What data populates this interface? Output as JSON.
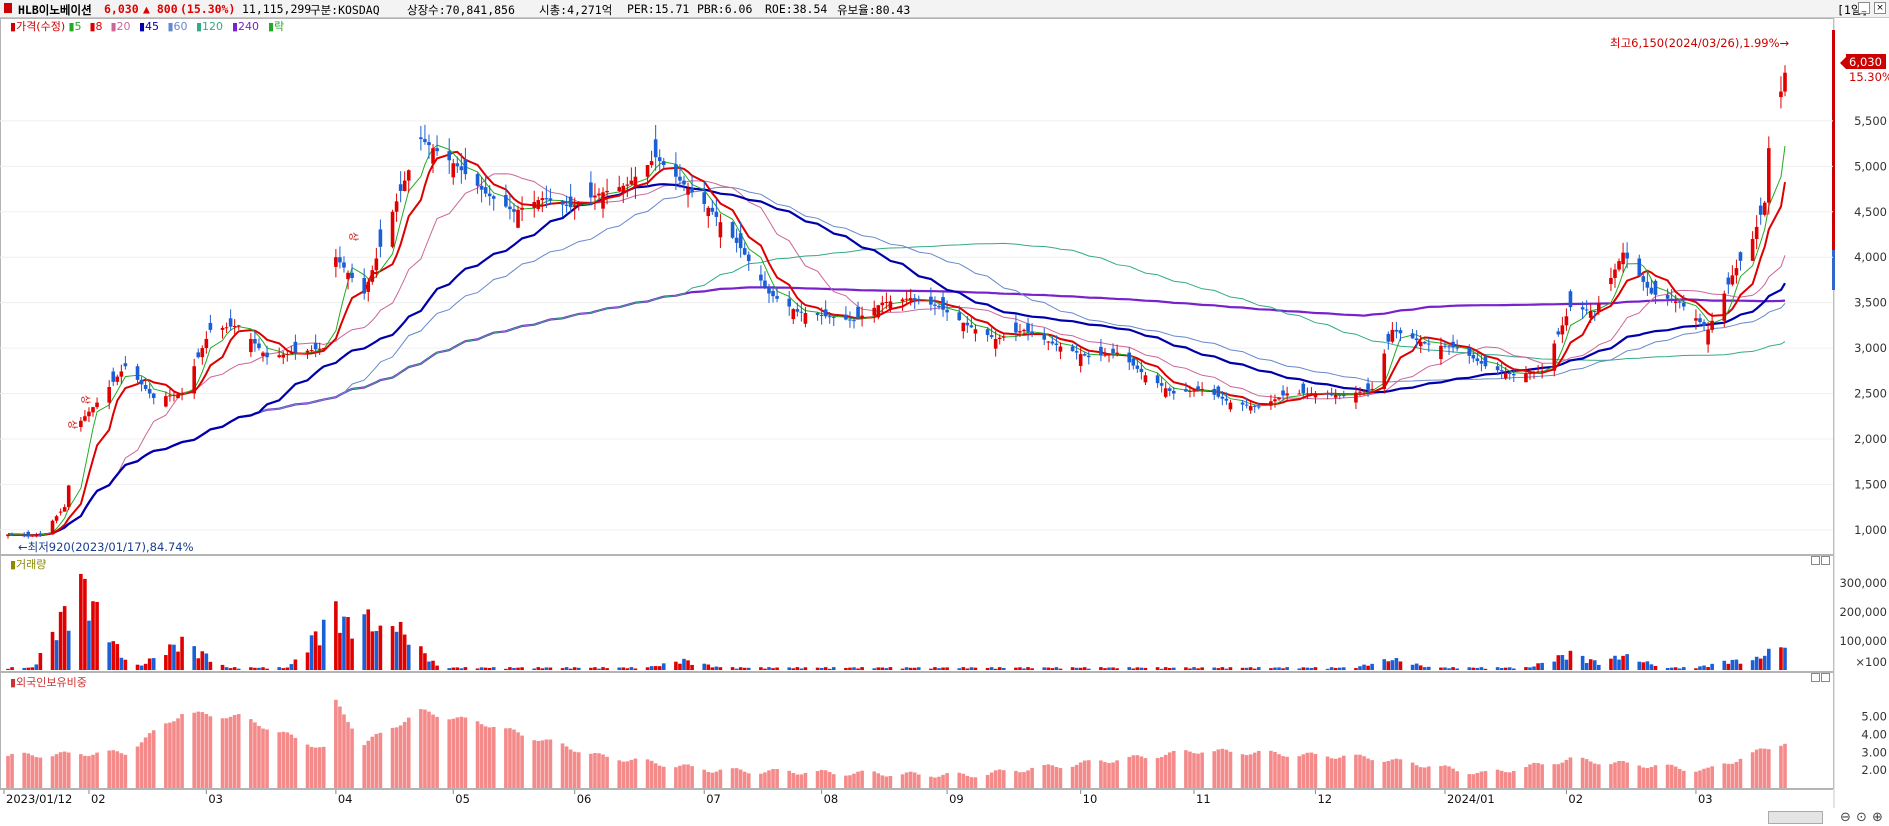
{
  "header": {
    "name": "HLB이노베이션",
    "price": "6,030",
    "change": "▲ 800",
    "change_pct": "(15.30%)",
    "volume": "11,115,299",
    "market": "구분:KOSDAQ",
    "shares": "상장수:70,841,856",
    "mktcap": "시총:4,271억",
    "per": "PER:15.71",
    "pbr": "PBR:6.06",
    "roe": "ROE:38.54",
    "float": "유보율:80.43",
    "period_button": "[1일]"
  },
  "price_panel": {
    "legend": [
      {
        "text": "▮가격(수정)",
        "color": "#cc0000"
      },
      {
        "text": "▮5",
        "color": "#22aa22"
      },
      {
        "text": "▮8",
        "color": "#dd0000"
      },
      {
        "text": "▮20",
        "color": "#cc6699"
      },
      {
        "text": "▮45",
        "color": "#0000aa"
      },
      {
        "text": "▮60",
        "color": "#6688cc"
      },
      {
        "text": "▮120",
        "color": "#33aa88"
      },
      {
        "text": "▮240",
        "color": "#7722cc"
      },
      {
        "text": "▮락",
        "color": "#22aa22"
      }
    ],
    "high_label": "최고6,150(2024/03/26),1.99%→",
    "low_label": "←최저920(2023/01/17),84.74%",
    "current_price_tag": "6,030",
    "current_pct_tag": "15.30%",
    "limit_markers": [
      "상",
      "상",
      "상"
    ]
  },
  "volume_panel": {
    "title": "▮거래량"
  },
  "foreign_panel": {
    "title": "▮외국인보유비중"
  },
  "colors": {
    "up": "#e00000",
    "down": "#1a5fd6",
    "foreign_bar": "#f48a8a"
  },
  "chart_data": [
    {
      "type": "candlestick",
      "title": "HLB이노베이션",
      "ylim": [
        800,
        6500
      ],
      "yticks": [
        1000,
        1500,
        2000,
        2500,
        3000,
        3500,
        4000,
        4500,
        5000,
        5500
      ],
      "ytick_labels": [
        "1,000",
        "1,500",
        "2,000",
        "2,500",
        "3,000",
        "3,500",
        "4,000",
        "4,500",
        "5,000",
        "5,500"
      ],
      "x_labels": [
        "2023/01/12",
        "02",
        "03",
        "04",
        "05",
        "06",
        "07",
        "08",
        "09",
        "10",
        "11",
        "12",
        "2024/01",
        "02",
        "03"
      ],
      "close_series": [
        {
          "date": "2023/01/12",
          "close": 950
        },
        {
          "date": "2023/01/17",
          "close": 930
        },
        {
          "date": "2023/01/20",
          "close": 950
        },
        {
          "date": "2023/01/26",
          "close": 1250
        },
        {
          "date": "2023/01/30",
          "close": 2200
        },
        {
          "date": "2023/02/03",
          "close": 2400
        },
        {
          "date": "2023/02/10",
          "close": 2800
        },
        {
          "date": "2023/02/17",
          "close": 2450
        },
        {
          "date": "2023/02/24",
          "close": 2500
        },
        {
          "date": "2023/03/03",
          "close": 3200
        },
        {
          "date": "2023/03/10",
          "close": 3250
        },
        {
          "date": "2023/03/17",
          "close": 2900
        },
        {
          "date": "2023/03/24",
          "close": 2950
        },
        {
          "date": "2023/03/31",
          "close": 3000
        },
        {
          "date": "2023/04/03",
          "close": 4000
        },
        {
          "date": "2023/04/10",
          "close": 3600
        },
        {
          "date": "2023/04/17",
          "close": 4500
        },
        {
          "date": "2023/04/24",
          "close": 5300
        },
        {
          "date": "2023/05/03",
          "close": 5000
        },
        {
          "date": "2023/05/10",
          "close": 4700
        },
        {
          "date": "2023/05/17",
          "close": 4500
        },
        {
          "date": "2023/05/24",
          "close": 4650
        },
        {
          "date": "2023/05/31",
          "close": 4550
        },
        {
          "date": "2023/06/07",
          "close": 4700
        },
        {
          "date": "2023/06/14",
          "close": 4800
        },
        {
          "date": "2023/06/21",
          "close": 5100
        },
        {
          "date": "2023/06/28",
          "close": 4800
        },
        {
          "date": "2023/07/05",
          "close": 4500
        },
        {
          "date": "2023/07/12",
          "close": 4100
        },
        {
          "date": "2023/07/19",
          "close": 3600
        },
        {
          "date": "2023/07/26",
          "close": 3400
        },
        {
          "date": "2023/08/02",
          "close": 3350
        },
        {
          "date": "2023/08/09",
          "close": 3300
        },
        {
          "date": "2023/08/16",
          "close": 3500
        },
        {
          "date": "2023/08/23",
          "close": 3550
        },
        {
          "date": "2023/08/30",
          "close": 3450
        },
        {
          "date": "2023/09/06",
          "close": 3250
        },
        {
          "date": "2023/09/13",
          "close": 3100
        },
        {
          "date": "2023/09/20",
          "close": 3200
        },
        {
          "date": "2023/09/27",
          "close": 3050
        },
        {
          "date": "2023/10/06",
          "close": 2900
        },
        {
          "date": "2023/10/13",
          "close": 2950
        },
        {
          "date": "2023/10/20",
          "close": 2700
        },
        {
          "date": "2023/10/27",
          "close": 2500
        },
        {
          "date": "2023/11/03",
          "close": 2550
        },
        {
          "date": "2023/11/10",
          "close": 2400
        },
        {
          "date": "2023/11/17",
          "close": 2350
        },
        {
          "date": "2023/11/24",
          "close": 2500
        },
        {
          "date": "2023/12/01",
          "close": 2500
        },
        {
          "date": "2023/12/08",
          "close": 2480
        },
        {
          "date": "2023/12/15",
          "close": 2550
        },
        {
          "date": "2023/12/20",
          "close": 3200
        },
        {
          "date": "2023/12/28",
          "close": 3050
        },
        {
          "date": "2024/01/05",
          "close": 3000
        },
        {
          "date": "2024/01/12",
          "close": 2800
        },
        {
          "date": "2024/01/19",
          "close": 2700
        },
        {
          "date": "2024/01/26",
          "close": 2750
        },
        {
          "date": "2024/02/02",
          "close": 3450
        },
        {
          "date": "2024/02/08",
          "close": 3400
        },
        {
          "date": "2024/02/15",
          "close": 4050
        },
        {
          "date": "2024/02/22",
          "close": 3600
        },
        {
          "date": "2024/02/29",
          "close": 3500
        },
        {
          "date": "2024/03/07",
          "close": 3200
        },
        {
          "date": "2024/03/13",
          "close": 3800
        },
        {
          "date": "2024/03/18",
          "close": 4200
        },
        {
          "date": "2024/03/21",
          "close": 4600
        },
        {
          "date": "2024/03/22",
          "close": 5200
        },
        {
          "date": "2024/03/26",
          "close": 6030
        }
      ],
      "ma_colors": {
        "5": "#22aa22",
        "8": "#dd0000",
        "20": "#cc6699",
        "45": "#0000aa",
        "60": "#6688cc",
        "120": "#33aa88",
        "240": "#7722cc"
      },
      "high": {
        "date": "2024/03/26",
        "value": 6150
      },
      "low": {
        "date": "2023/01/17",
        "value": 920
      }
    },
    {
      "type": "bar",
      "title": "거래량",
      "yticks": [
        100000,
        200000,
        300000
      ],
      "ytick_labels": [
        "×100",
        "100,000",
        "200,000",
        "300,000"
      ],
      "ylim": [
        0,
        380000
      ],
      "note": "values in units of 100 shares",
      "spikes": [
        {
          "date": "2023/01/30",
          "value": 360000
        },
        {
          "date": "2023/02/03",
          "value": 110000
        },
        {
          "date": "2023/02/24",
          "value": 120000
        },
        {
          "date": "2023/04/03",
          "value": 250000
        },
        {
          "date": "2023/04/10",
          "value": 230000
        },
        {
          "date": "2023/04/17",
          "value": 200000
        },
        {
          "date": "2023/06/28",
          "value": 40000
        },
        {
          "date": "2023/12/20",
          "value": 45000
        },
        {
          "date": "2024/02/02",
          "value": 70000
        },
        {
          "date": "2024/02/15",
          "value": 60000
        },
        {
          "date": "2024/03/13",
          "value": 40000
        },
        {
          "date": "2024/03/21",
          "value": 55000
        },
        {
          "date": "2024/03/26",
          "value": 110000
        }
      ]
    },
    {
      "type": "bar",
      "title": "외국인보유비중",
      "yticks": [
        2,
        3,
        4,
        5
      ],
      "ytick_labels": [
        "2.00",
        "3.00",
        "4.00",
        "5.00"
      ],
      "ylim": [
        1,
        6.5
      ],
      "samples": [
        {
          "date": "2023/01/12",
          "value": 2.8
        },
        {
          "date": "2023/02/10",
          "value": 3.0
        },
        {
          "date": "2023/02/24",
          "value": 5.2
        },
        {
          "date": "2023/03/10",
          "value": 5.0
        },
        {
          "date": "2023/03/31",
          "value": 3.2
        },
        {
          "date": "2023/04/03",
          "value": 5.8
        },
        {
          "date": "2023/04/10",
          "value": 3.5
        },
        {
          "date": "2023/04/24",
          "value": 5.3
        },
        {
          "date": "2023/05/10",
          "value": 4.6
        },
        {
          "date": "2023/06/07",
          "value": 2.8
        },
        {
          "date": "2023/07/05",
          "value": 2.0
        },
        {
          "date": "2023/09/06",
          "value": 1.7
        },
        {
          "date": "2023/11/03",
          "value": 3.1
        },
        {
          "date": "2023/12/15",
          "value": 2.7
        },
        {
          "date": "2024/01/12",
          "value": 1.8
        },
        {
          "date": "2024/02/02",
          "value": 2.6
        },
        {
          "date": "2024/03/07",
          "value": 2.0
        },
        {
          "date": "2024/03/26",
          "value": 3.6
        }
      ]
    }
  ]
}
